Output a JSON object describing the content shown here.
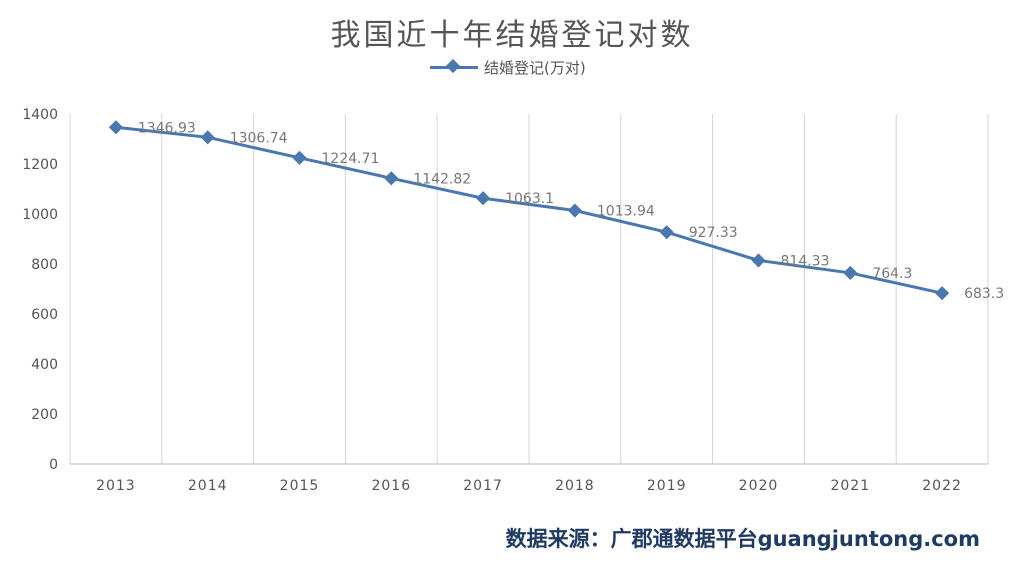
{
  "chart_data": {
    "type": "line",
    "title": "我国近十年结婚登记对数",
    "categories": [
      "2013",
      "2014",
      "2015",
      "2016",
      "2017",
      "2018",
      "2019",
      "2020",
      "2021",
      "2022"
    ],
    "series": [
      {
        "name": "结婚登记(万对)",
        "values": [
          1346.93,
          1306.74,
          1224.71,
          1142.82,
          1063.1,
          1013.94,
          927.33,
          814.33,
          764.3,
          683.3
        ],
        "labels": [
          "1346.93",
          "1306.74",
          "1224.71",
          "1142.82",
          "1063.1",
          "1013.94",
          "927.33",
          "814.33",
          "764.3",
          "683.3"
        ]
      }
    ],
    "ylim": [
      0,
      1400
    ],
    "yticks": [
      0,
      200,
      400,
      600,
      800,
      1000,
      1200,
      1400
    ],
    "xlabel": "",
    "ylabel": "",
    "grid": "vertical",
    "legend": "top-center",
    "line_color": "#4a77b0"
  },
  "source": "数据来源：广郡通数据平台guangjuntong.com"
}
